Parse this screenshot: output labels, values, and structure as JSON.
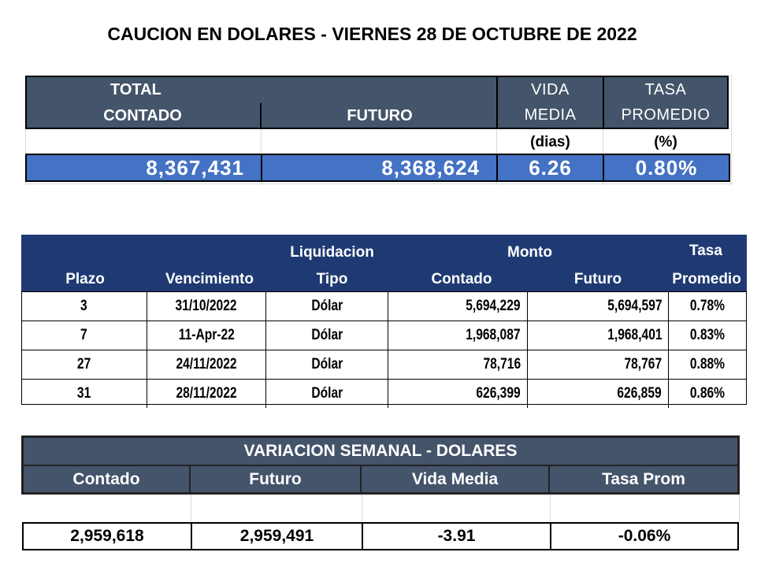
{
  "title": "CAUCION EN DOLARES - VIERNES 28 DE OCTUBRE DE 2022",
  "summary": {
    "header_total": "TOTAL",
    "header_contado": "CONTADO",
    "header_futuro": "FUTURO",
    "header_vida_1": "VIDA",
    "header_vida_2": "MEDIA",
    "header_tasa_1": "TASA",
    "header_tasa_2": "PROMEDIO",
    "unit_vida": "(dias)",
    "unit_tasa": "(%)",
    "contado": "8,367,431",
    "futuro": "8,368,624",
    "vida_media": "6.26",
    "tasa_promedio": "0.80%"
  },
  "detail": {
    "headers": {
      "plazo": "Plazo",
      "vencimiento": "Vencimiento",
      "liquidacion": "Liquidacion",
      "tipo": "Tipo",
      "monto": "Monto",
      "contado": "Contado",
      "futuro": "Futuro",
      "tasa_1": "Tasa",
      "tasa_2": "Promedio"
    },
    "rows": [
      {
        "plazo": "3",
        "vencimiento": "31/10/2022",
        "tipo": "Dólar",
        "contado": "5,694,229",
        "futuro": "5,694,597",
        "tasa": "0.78%"
      },
      {
        "plazo": "7",
        "vencimiento": "11-Apr-22",
        "tipo": "Dólar",
        "contado": "1,968,087",
        "futuro": "1,968,401",
        "tasa": "0.83%"
      },
      {
        "plazo": "27",
        "vencimiento": "24/11/2022",
        "tipo": "Dólar",
        "contado": "78,716",
        "futuro": "78,767",
        "tasa": "0.88%"
      },
      {
        "plazo": "31",
        "vencimiento": "28/11/2022",
        "tipo": "Dólar",
        "contado": "626,399",
        "futuro": "626,859",
        "tasa": "0.86%"
      }
    ]
  },
  "weekly": {
    "title": "VARIACION SEMANAL - DOLARES",
    "headers": [
      "Contado",
      "Futuro",
      "Vida Media",
      "Tasa Prom"
    ],
    "values": [
      "2,959,618",
      "2,959,491",
      "-3.91",
      "-0.06%"
    ]
  },
  "colors": {
    "header_gray": "#44546a",
    "value_blue": "#4472c4",
    "header_navy": "#1f3a73"
  }
}
